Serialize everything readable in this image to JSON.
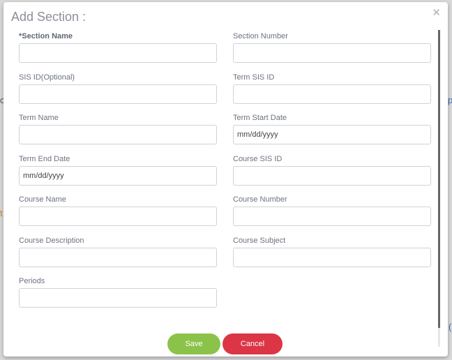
{
  "modal": {
    "title": "Add Section :",
    "close_icon": "close-icon",
    "fields": [
      {
        "label": "*Section Name",
        "value": "",
        "placeholder": "",
        "required": true
      },
      {
        "label": "Section Number",
        "value": "",
        "placeholder": ""
      },
      {
        "label": "SIS ID(Optional)",
        "value": "",
        "placeholder": ""
      },
      {
        "label": "Term SIS ID",
        "value": "",
        "placeholder": ""
      },
      {
        "label": "Term Name",
        "value": "",
        "placeholder": ""
      },
      {
        "label": "Term Start Date",
        "value": "",
        "placeholder": "mm/dd/yyyy"
      },
      {
        "label": "Term End Date",
        "value": "",
        "placeholder": "mm/dd/yyyy"
      },
      {
        "label": "Course SIS ID",
        "value": "",
        "placeholder": ""
      },
      {
        "label": "Course Name",
        "value": "",
        "placeholder": ""
      },
      {
        "label": "Course Number",
        "value": "",
        "placeholder": ""
      },
      {
        "label": "Course Description",
        "value": "",
        "placeholder": ""
      },
      {
        "label": "Course Subject",
        "value": "",
        "placeholder": ""
      },
      {
        "label": "Periods",
        "value": "",
        "placeholder": ""
      }
    ],
    "save_label": "Save",
    "cancel_label": "Cancel"
  },
  "colors": {
    "save": "#8bc34a",
    "cancel": "#dc3545"
  }
}
